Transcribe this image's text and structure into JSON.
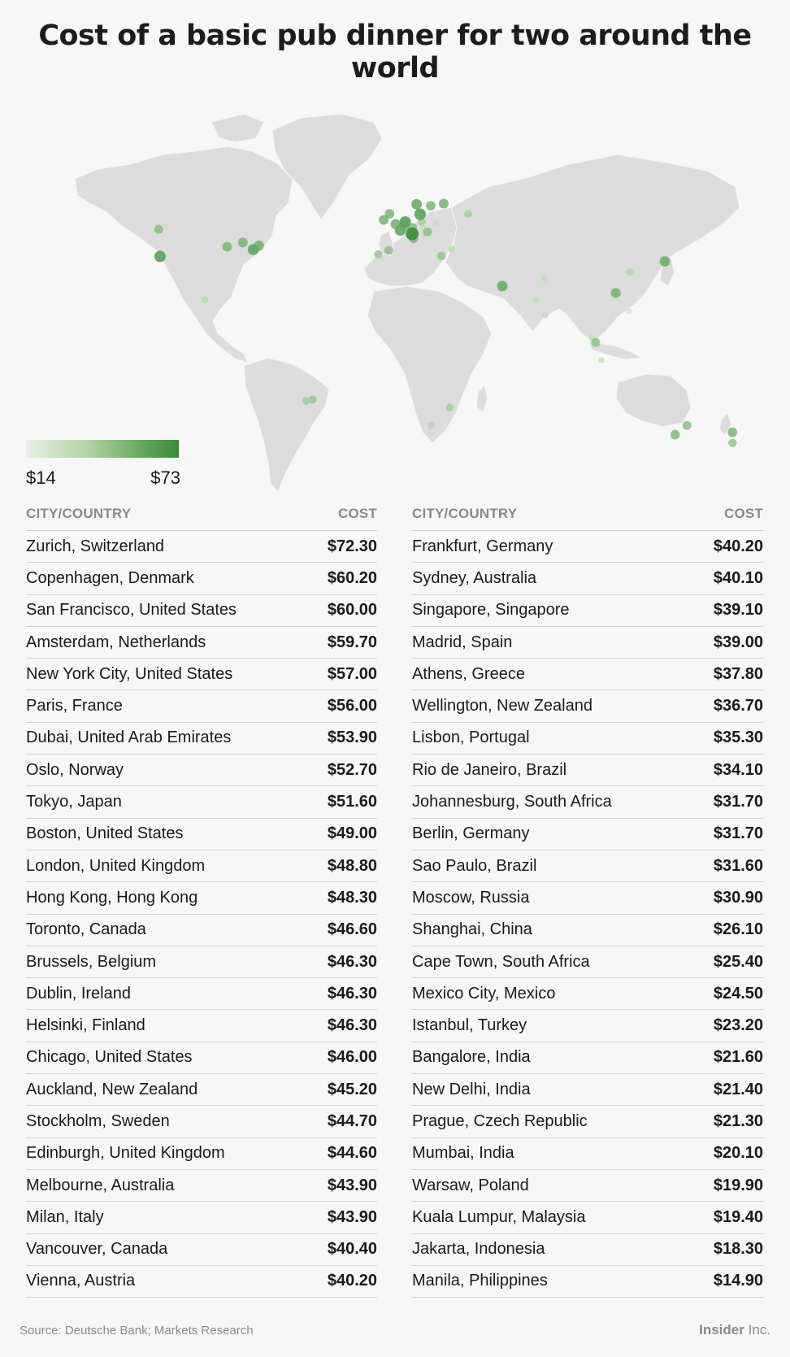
{
  "title": "Cost of a basic pub dinner for two around the world",
  "legend": {
    "min": "$14",
    "max": "$73"
  },
  "colors": {
    "low": "#e6f0e1",
    "high": "#3a8a36",
    "land": "#dcdcdc",
    "border": "#f4f4f4"
  },
  "table": {
    "city_header": "CITY/COUNTRY",
    "cost_header": "COST",
    "left": [
      {
        "city": "Zurich, Switzerland",
        "cost": "$72.30"
      },
      {
        "city": "Copenhagen, Denmark",
        "cost": "$60.20"
      },
      {
        "city": "San Francisco, United States",
        "cost": "$60.00"
      },
      {
        "city": "Amsterdam, Netherlands",
        "cost": "$59.70"
      },
      {
        "city": "New York City, United States",
        "cost": "$57.00"
      },
      {
        "city": "Paris, France",
        "cost": "$56.00"
      },
      {
        "city": "Dubai, United Arab Emirates",
        "cost": "$53.90"
      },
      {
        "city": "Oslo, Norway",
        "cost": "$52.70"
      },
      {
        "city": "Tokyo, Japan",
        "cost": "$51.60"
      },
      {
        "city": "Boston, United States",
        "cost": "$49.00"
      },
      {
        "city": "London, United Kingdom",
        "cost": "$48.80"
      },
      {
        "city": "Hong Kong, Hong Kong",
        "cost": "$48.30"
      },
      {
        "city": "Toronto, Canada",
        "cost": "$46.60"
      },
      {
        "city": "Brussels, Belgium",
        "cost": "$46.30"
      },
      {
        "city": "Dublin, Ireland",
        "cost": "$46.30"
      },
      {
        "city": "Helsinki, Finland",
        "cost": "$46.30"
      },
      {
        "city": "Chicago, United States",
        "cost": "$46.00"
      },
      {
        "city": "Auckland, New Zealand",
        "cost": "$45.20"
      },
      {
        "city": "Stockholm, Sweden",
        "cost": "$44.70"
      },
      {
        "city": "Edinburgh, United Kingdom",
        "cost": "$44.60"
      },
      {
        "city": "Melbourne, Australia",
        "cost": "$43.90"
      },
      {
        "city": "Milan, Italy",
        "cost": "$43.90"
      },
      {
        "city": "Vancouver, Canada",
        "cost": "$40.40"
      },
      {
        "city": "Vienna, Austria",
        "cost": "$40.20"
      }
    ],
    "right": [
      {
        "city": "Frankfurt, Germany",
        "cost": "$40.20"
      },
      {
        "city": "Sydney, Australia",
        "cost": "$40.10"
      },
      {
        "city": "Singapore, Singapore",
        "cost": "$39.10"
      },
      {
        "city": "Madrid, Spain",
        "cost": "$39.00"
      },
      {
        "city": "Athens, Greece",
        "cost": "$37.80"
      },
      {
        "city": "Wellington, New Zealand",
        "cost": "$36.70"
      },
      {
        "city": "Lisbon, Portugal",
        "cost": "$35.30"
      },
      {
        "city": "Rio de Janeiro, Brazil",
        "cost": "$34.10"
      },
      {
        "city": "Johannesburg, South Africa",
        "cost": "$31.70"
      },
      {
        "city": "Berlin, Germany",
        "cost": "$31.70"
      },
      {
        "city": "Sao Paulo, Brazil",
        "cost": "$31.60"
      },
      {
        "city": "Moscow, Russia",
        "cost": "$30.90"
      },
      {
        "city": "Shanghai, China",
        "cost": "$26.10"
      },
      {
        "city": "Cape Town, South Africa",
        "cost": "$25.40"
      },
      {
        "city": "Mexico City, Mexico",
        "cost": "$24.50"
      },
      {
        "city": "Istanbul, Turkey",
        "cost": "$23.20"
      },
      {
        "city": "Bangalore, India",
        "cost": "$21.60"
      },
      {
        "city": "New Delhi, India",
        "cost": "$21.40"
      },
      {
        "city": "Prague, Czech Republic",
        "cost": "$21.30"
      },
      {
        "city": "Mumbai, India",
        "cost": "$20.10"
      },
      {
        "city": "Warsaw, Poland",
        "cost": "$19.90"
      },
      {
        "city": "Kuala Lumpur, Malaysia",
        "cost": "$19.40"
      },
      {
        "city": "Jakarta, Indonesia",
        "cost": "$18.30"
      },
      {
        "city": "Manila, Philippines",
        "cost": "$14.90"
      }
    ]
  },
  "map_points": [
    {
      "city": "Zurich",
      "lon": 8.5,
      "lat": 47.4,
      "value": 72.3
    },
    {
      "city": "Copenhagen",
      "lon": 12.6,
      "lat": 55.7,
      "value": 60.2
    },
    {
      "city": "San Francisco",
      "lon": -122.4,
      "lat": 37.8,
      "value": 60.0
    },
    {
      "city": "Amsterdam",
      "lon": 4.9,
      "lat": 52.4,
      "value": 59.7
    },
    {
      "city": "New York City",
      "lon": -74.0,
      "lat": 40.7,
      "value": 57.0
    },
    {
      "city": "Paris",
      "lon": 2.3,
      "lat": 48.9,
      "value": 56.0
    },
    {
      "city": "Dubai",
      "lon": 55.3,
      "lat": 25.2,
      "value": 53.9
    },
    {
      "city": "Oslo",
      "lon": 10.8,
      "lat": 59.9,
      "value": 52.7
    },
    {
      "city": "Tokyo",
      "lon": 139.7,
      "lat": 35.7,
      "value": 51.6
    },
    {
      "city": "Boston",
      "lon": -71.1,
      "lat": 42.4,
      "value": 49.0
    },
    {
      "city": "London",
      "lon": -0.1,
      "lat": 51.5,
      "value": 48.8
    },
    {
      "city": "Hong Kong",
      "lon": 114.2,
      "lat": 22.3,
      "value": 48.3
    },
    {
      "city": "Toronto",
      "lon": -79.4,
      "lat": 43.7,
      "value": 46.6
    },
    {
      "city": "Brussels",
      "lon": 4.4,
      "lat": 50.8,
      "value": 46.3
    },
    {
      "city": "Dublin",
      "lon": -6.3,
      "lat": 53.3,
      "value": 46.3
    },
    {
      "city": "Helsinki",
      "lon": 24.9,
      "lat": 60.2,
      "value": 46.3
    },
    {
      "city": "Chicago",
      "lon": -87.6,
      "lat": 41.9,
      "value": 46.0
    },
    {
      "city": "Auckland",
      "lon": 174.8,
      "lat": -36.8,
      "value": 45.2
    },
    {
      "city": "Stockholm",
      "lon": 18.1,
      "lat": 59.3,
      "value": 44.7
    },
    {
      "city": "Edinburgh",
      "lon": -3.2,
      "lat": 55.9,
      "value": 44.6
    },
    {
      "city": "Melbourne",
      "lon": 145.0,
      "lat": -37.8,
      "value": 43.9
    },
    {
      "city": "Milan",
      "lon": 9.2,
      "lat": 45.5,
      "value": 43.9
    },
    {
      "city": "Vancouver",
      "lon": -123.1,
      "lat": 49.3,
      "value": 40.4
    },
    {
      "city": "Vienna",
      "lon": 16.4,
      "lat": 48.2,
      "value": 40.2
    },
    {
      "city": "Frankfurt",
      "lon": 8.7,
      "lat": 50.1,
      "value": 40.2
    },
    {
      "city": "Sydney",
      "lon": 151.2,
      "lat": -33.9,
      "value": 40.1
    },
    {
      "city": "Singapore",
      "lon": 103.8,
      "lat": 1.35,
      "value": 39.1
    },
    {
      "city": "Madrid",
      "lon": -3.7,
      "lat": 40.4,
      "value": 39.0
    },
    {
      "city": "Athens",
      "lon": 23.7,
      "lat": 38.0,
      "value": 37.8
    },
    {
      "city": "Wellington",
      "lon": 174.8,
      "lat": -41.3,
      "value": 36.7
    },
    {
      "city": "Lisbon",
      "lon": -9.1,
      "lat": 38.7,
      "value": 35.3
    },
    {
      "city": "Rio de Janeiro",
      "lon": -43.2,
      "lat": -22.9,
      "value": 34.1
    },
    {
      "city": "Johannesburg",
      "lon": 28.0,
      "lat": -26.2,
      "value": 31.7
    },
    {
      "city": "Berlin",
      "lon": 13.4,
      "lat": 52.5,
      "value": 31.7
    },
    {
      "city": "Sao Paulo",
      "lon": -46.6,
      "lat": -23.5,
      "value": 31.6
    },
    {
      "city": "Moscow",
      "lon": 37.6,
      "lat": 55.8,
      "value": 30.9
    },
    {
      "city": "Shanghai",
      "lon": 121.5,
      "lat": 31.2,
      "value": 26.1
    },
    {
      "city": "Cape Town",
      "lon": 18.4,
      "lat": -33.9,
      "value": 25.4
    },
    {
      "city": "Mexico City",
      "lon": -99.1,
      "lat": 19.4,
      "value": 24.5
    },
    {
      "city": "Istanbul",
      "lon": 29.0,
      "lat": 41.0,
      "value": 23.2
    },
    {
      "city": "Bangalore",
      "lon": 77.6,
      "lat": 12.97,
      "value": 21.6
    },
    {
      "city": "New Delhi",
      "lon": 77.2,
      "lat": 28.6,
      "value": 21.4
    },
    {
      "city": "Prague",
      "lon": 14.4,
      "lat": 50.1,
      "value": 21.3
    },
    {
      "city": "Mumbai",
      "lon": 72.9,
      "lat": 19.1,
      "value": 20.1
    },
    {
      "city": "Warsaw",
      "lon": 21.0,
      "lat": 52.2,
      "value": 19.9
    },
    {
      "city": "Kuala Lumpur",
      "lon": 101.7,
      "lat": 3.1,
      "value": 19.4
    },
    {
      "city": "Jakarta",
      "lon": 106.8,
      "lat": -6.2,
      "value": 18.3
    },
    {
      "city": "Manila",
      "lon": 121.0,
      "lat": 14.6,
      "value": 14.9
    }
  ],
  "footer": {
    "source": "Source: Deutsche Bank; Markets Research",
    "brand_bold": "Insider",
    "brand_rest": " Inc."
  }
}
